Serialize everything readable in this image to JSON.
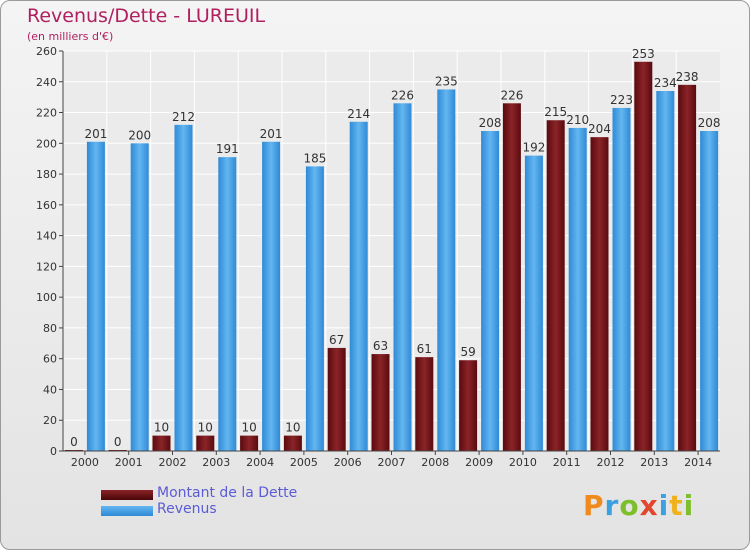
{
  "chart_data": {
    "type": "bar",
    "title": "Revenus/Dette - LUREUIL",
    "subtitle": "(en milliers d'€)",
    "categories": [
      "2000",
      "2001",
      "2002",
      "2003",
      "2004",
      "2005",
      "2006",
      "2007",
      "2008",
      "2009",
      "2010",
      "2011",
      "2012",
      "2013",
      "2014"
    ],
    "series": [
      {
        "name": "Montant de la Dette",
        "color": "#7a1418",
        "values": [
          0,
          0,
          10,
          10,
          10,
          10,
          67,
          63,
          61,
          59,
          226,
          215,
          204,
          253,
          238
        ]
      },
      {
        "name": "Revenus",
        "color": "#3b9be0",
        "values": [
          201,
          200,
          212,
          191,
          201,
          185,
          214,
          226,
          235,
          208,
          192,
          210,
          223,
          234,
          208
        ]
      }
    ],
    "ylim": [
      0,
      260
    ],
    "yticks": [
      0,
      20,
      40,
      60,
      80,
      100,
      120,
      140,
      160,
      180,
      200,
      220,
      240,
      260
    ],
    "grid": true,
    "legend_position": "bottom-left",
    "xlabel": "",
    "ylabel": ""
  },
  "logo": {
    "letters": [
      "P",
      "r",
      "o",
      "x",
      "i",
      "t",
      "i"
    ],
    "colors": [
      "#f08a1c",
      "#3aa0e0",
      "#7cbf2a",
      "#e2462e",
      "#3aa0e0",
      "#f0b21c",
      "#7cbf2a"
    ]
  }
}
